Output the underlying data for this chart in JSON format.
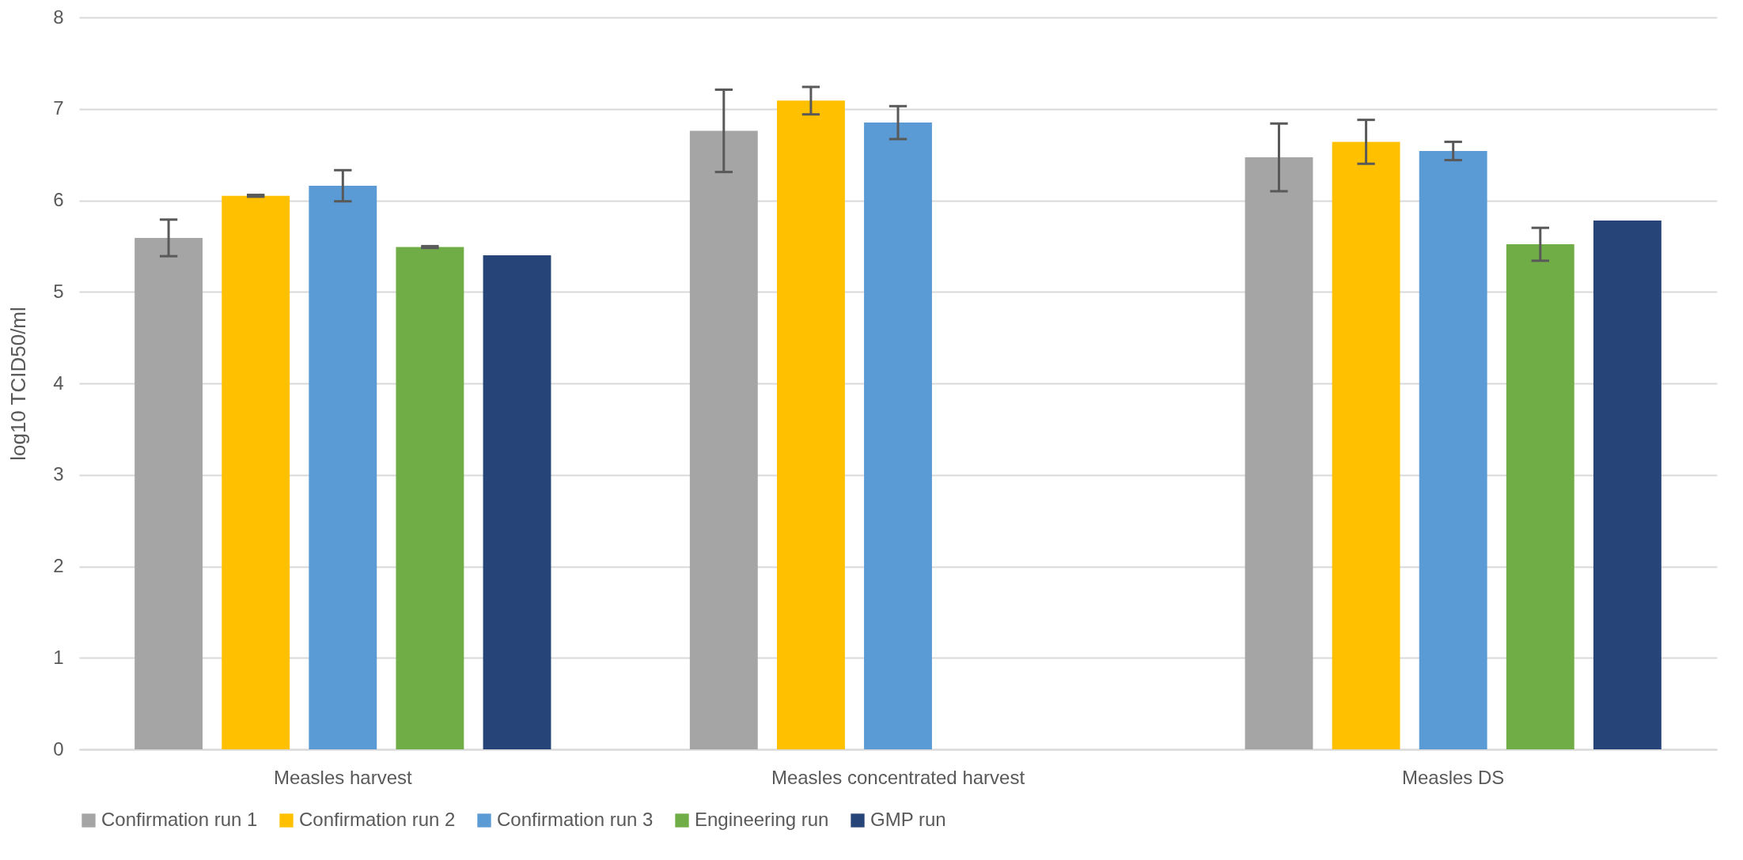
{
  "chart_data": {
    "type": "bar",
    "ylabel": "log10 TCID50/ml",
    "categories": [
      "Measles harvest",
      "Measles concentrated harvest",
      "Measles DS"
    ],
    "ylim": [
      0,
      8
    ],
    "yticks": [
      0,
      1,
      2,
      3,
      4,
      5,
      6,
      7,
      8
    ],
    "grid": "y",
    "legend": "bottom",
    "series": [
      {
        "name": "Confirmation run 1",
        "color": "#a5a5a5",
        "values": [
          5.59,
          6.76,
          6.47
        ],
        "errors": [
          0.2,
          0.45,
          0.37
        ]
      },
      {
        "name": "Confirmation run 2",
        "color": "#ffc000",
        "values": [
          6.05,
          7.09,
          6.64
        ],
        "errors": [
          0.01,
          0.15,
          0.24
        ]
      },
      {
        "name": "Confirmation run 3",
        "color": "#5b9bd5",
        "values": [
          6.16,
          6.85,
          6.54
        ],
        "errors": [
          0.17,
          0.18,
          0.1
        ]
      },
      {
        "name": "Engineering run",
        "color": "#70ad47",
        "values": [
          5.49,
          null,
          5.52
        ],
        "errors": [
          0.01,
          null,
          0.18
        ]
      },
      {
        "name": "GMP run",
        "color": "#264478",
        "values": [
          5.4,
          null,
          5.78
        ],
        "errors": [
          null,
          null,
          null
        ]
      }
    ]
  }
}
